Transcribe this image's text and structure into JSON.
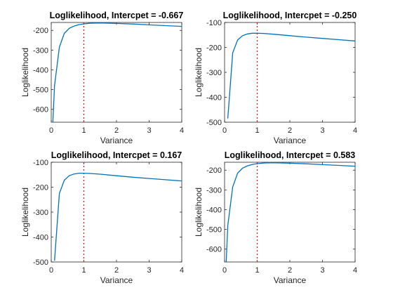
{
  "figure": {
    "background": "#ffffff",
    "line_color": "#0072BD",
    "reference_color": "#D42020",
    "axis_color": "#262626"
  },
  "chart_data": [
    {
      "type": "line",
      "title": "Loglikelihood, Intercpet = -0.667",
      "xlabel": "Variance",
      "ylabel": "Loglikelihood",
      "xlim": [
        0,
        4
      ],
      "ylim": [
        -665,
        -160
      ],
      "xticks": [
        0,
        1,
        2,
        3,
        4
      ],
      "yticks": [
        -600,
        -500,
        -400,
        -300,
        -200
      ],
      "reference_line": {
        "orientation": "vertical",
        "x": 1,
        "style": "dotted"
      },
      "series": [
        {
          "x": [
            0.05,
            0.1,
            0.25,
            0.4,
            0.55,
            0.7,
            0.85,
            1.0,
            1.2,
            1.4,
            1.6,
            1.8,
            2.0,
            2.5,
            3.0,
            3.5,
            4.0
          ],
          "y": [
            -665,
            -480,
            -285,
            -215,
            -190,
            -178,
            -171,
            -167,
            -164,
            -163,
            -163,
            -164,
            -165,
            -168,
            -172,
            -176,
            -180
          ]
        }
      ],
      "grid": false,
      "legend": false
    },
    {
      "type": "line",
      "title": "Loglikelihood, Intercpet = -0.250",
      "xlabel": "Variance",
      "ylabel": "Loglikelihood",
      "xlim": [
        0,
        4
      ],
      "ylim": [
        -500,
        -100
      ],
      "xticks": [
        0,
        1,
        2,
        3,
        4
      ],
      "yticks": [
        -500,
        -400,
        -300,
        -200,
        -100
      ],
      "reference_line": {
        "orientation": "vertical",
        "x": 1,
        "style": "dotted"
      },
      "series": [
        {
          "x": [
            0.1,
            0.25,
            0.4,
            0.55,
            0.7,
            0.85,
            1.0,
            1.2,
            1.5,
            2.0,
            2.5,
            3.0,
            3.5,
            4.0
          ],
          "y": [
            -485,
            -222,
            -170,
            -153,
            -146,
            -143,
            -143,
            -144,
            -147,
            -153,
            -159,
            -164,
            -169,
            -174
          ]
        }
      ],
      "grid": false,
      "legend": false
    },
    {
      "type": "line",
      "title": "Loglikelihood, Intercpet = 0.167",
      "xlabel": "Variance",
      "ylabel": "Loglikelihood",
      "xlim": [
        0,
        4
      ],
      "ylim": [
        -500,
        -100
      ],
      "xticks": [
        0,
        1,
        2,
        3,
        4
      ],
      "yticks": [
        -500,
        -400,
        -300,
        -200,
        -100
      ],
      "reference_line": {
        "orientation": "vertical",
        "x": 1,
        "style": "dotted"
      },
      "series": [
        {
          "x": [
            0.1,
            0.25,
            0.4,
            0.55,
            0.7,
            0.85,
            1.0,
            1.2,
            1.5,
            2.0,
            2.5,
            3.0,
            3.5,
            4.0
          ],
          "y": [
            -495,
            -225,
            -172,
            -154,
            -147,
            -144,
            -144,
            -145,
            -148,
            -154,
            -160,
            -165,
            -170,
            -175
          ]
        }
      ],
      "grid": false,
      "legend": false
    },
    {
      "type": "line",
      "title": "Loglikelihood, Intercpet = 0.583",
      "xlabel": "Variance",
      "ylabel": "Loglikelihood",
      "xlim": [
        0,
        4
      ],
      "ylim": [
        -665,
        -160
      ],
      "xticks": [
        0,
        1,
        2,
        3,
        4
      ],
      "yticks": [
        -600,
        -500,
        -400,
        -300,
        -200
      ],
      "reference_line": {
        "orientation": "vertical",
        "x": 1,
        "style": "dotted"
      },
      "series": [
        {
          "x": [
            0.05,
            0.1,
            0.25,
            0.4,
            0.55,
            0.7,
            0.85,
            1.0,
            1.2,
            1.4,
            1.6,
            1.8,
            2.0,
            2.5,
            3.0,
            3.5,
            4.0
          ],
          "y": [
            -665,
            -480,
            -285,
            -215,
            -190,
            -178,
            -171,
            -167,
            -164,
            -163,
            -163,
            -164,
            -165,
            -168,
            -172,
            -176,
            -180
          ]
        }
      ],
      "grid": false,
      "legend": false
    }
  ]
}
